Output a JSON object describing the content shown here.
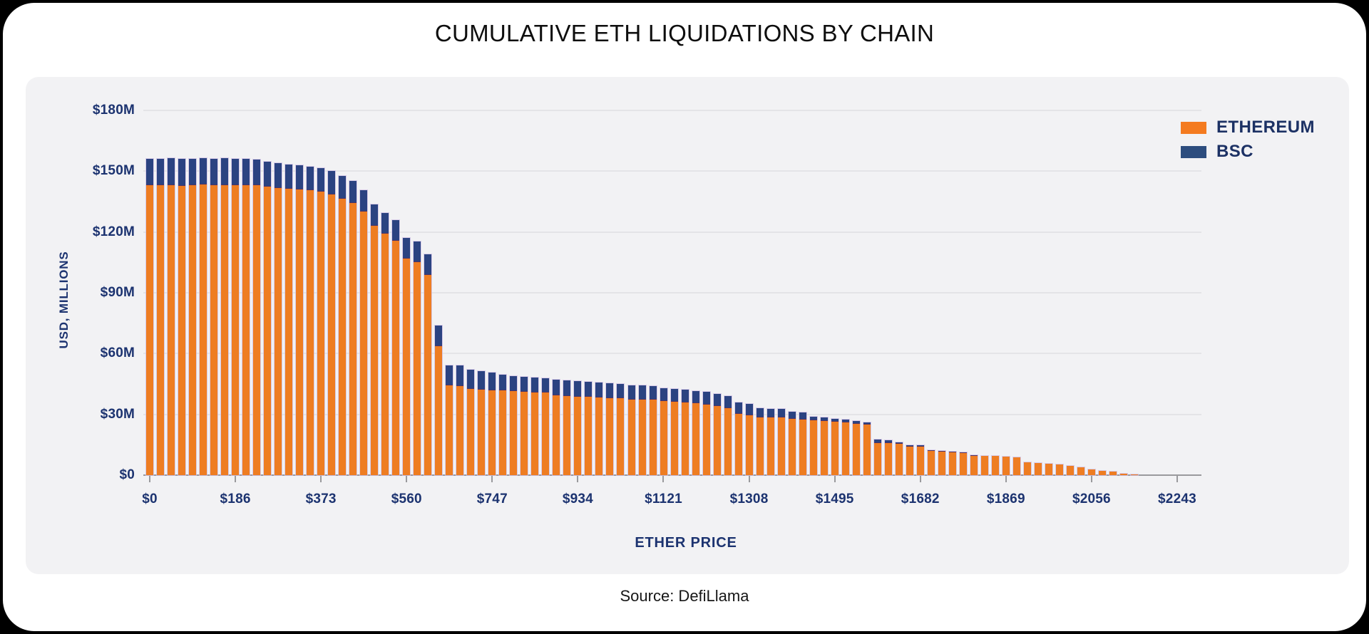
{
  "page": {
    "title": "CUMULATIVE ETH LIQUIDATIONS BY CHAIN",
    "source": "Source: DefiLlama"
  },
  "legend": {
    "items": [
      {
        "label": "ETHEREUM",
        "color": "#f47b20"
      },
      {
        "label": "BSC",
        "color": "#2d4d7e"
      }
    ]
  },
  "chart_data": {
    "type": "bar",
    "stacked": true,
    "title": "CUMULATIVE ETH LIQUIDATIONS BY CHAIN",
    "xlabel": "ETHER PRICE",
    "ylabel": "USD, MILLIONS",
    "ylim": [
      0,
      180
    ],
    "grid": "horizontal",
    "legend_position": "top-right",
    "y_ticks": [
      {
        "label": "$180M",
        "value": 180
      },
      {
        "label": "$150M",
        "value": 150
      },
      {
        "label": "$120M",
        "value": 120
      },
      {
        "label": "$90M",
        "value": 90
      },
      {
        "label": "$60M",
        "value": 60
      },
      {
        "label": "$30M",
        "value": 30
      },
      {
        "label": "$0",
        "value": 0
      }
    ],
    "x_tick_labels": [
      "$0",
      "$186",
      "$373",
      "$560",
      "$747",
      "$934",
      "$1121",
      "$1308",
      "$1495",
      "$1682",
      "$1869",
      "$2056",
      "$2243"
    ],
    "bars_per_x_tick_interval": 8,
    "price_step_per_bar_usd": 23.4,
    "values_unit": "USD millions",
    "series": [
      {
        "name": "ETHEREUM",
        "color": "#ee7d22",
        "values": [
          143,
          143,
          143.2,
          142.9,
          143.2,
          143.3,
          143.1,
          143.1,
          143.1,
          143,
          142.9,
          142.2,
          141.8,
          141.4,
          140.9,
          140.5,
          140,
          138.6,
          136.5,
          134.3,
          130,
          123.1,
          119,
          115.6,
          106.9,
          105.2,
          98.9,
          63.7,
          44.2,
          44,
          42.6,
          42.1,
          41.9,
          41.7,
          41.4,
          41.2,
          40.9,
          40.7,
          39.3,
          39,
          38.8,
          38.6,
          38.4,
          38.1,
          38,
          37.4,
          37.4,
          37.2,
          36.4,
          36.2,
          36,
          35.4,
          34.9,
          34.1,
          33.2,
          30.2,
          29.5,
          28.4,
          28.4,
          28.4,
          27.7,
          27.5,
          26.9,
          26.7,
          26.3,
          26.1,
          25.4,
          25.1,
          15.8,
          15.7,
          15.4,
          14.2,
          14.2,
          12,
          11.7,
          11.4,
          11,
          9.7,
          9.4,
          9.3,
          9.2,
          8.8,
          6.3,
          5.9,
          5.8,
          5.3,
          4.6,
          3.9,
          2.9,
          2.2,
          1.6,
          0.8,
          0.4
        ]
      },
      {
        "name": "BSC",
        "color": "#2b4381",
        "values": [
          13,
          13,
          13.1,
          13.2,
          13,
          13.2,
          13.1,
          13.3,
          13.1,
          13,
          12.8,
          12.4,
          12.2,
          12,
          11.9,
          11.8,
          11.6,
          11.4,
          11.1,
          10.9,
          10.7,
          10.5,
          10.4,
          10.3,
          10.2,
          10.2,
          10.1,
          10.2,
          10,
          10,
          9.6,
          9.3,
          8.7,
          7.9,
          7.6,
          7.5,
          7.4,
          7.3,
          8,
          7.7,
          7.6,
          7.4,
          7.2,
          7.1,
          7,
          6.9,
          6.8,
          6.8,
          6.6,
          6.4,
          6.3,
          6.2,
          6.1,
          5.9,
          5.8,
          5.7,
          5.5,
          4.6,
          4.3,
          4.2,
          3.6,
          3.5,
          1.9,
          1.8,
          1.5,
          1.4,
          1.3,
          0.9,
          1.8,
          1.5,
          0.8,
          0.6,
          0.5,
          0.3,
          0.3,
          0.2,
          0.2,
          0.2,
          0.1,
          0.1,
          0.1,
          0.1,
          0.1,
          0.1,
          0,
          0,
          0,
          0,
          0,
          0,
          0,
          0,
          0
        ]
      }
    ]
  }
}
